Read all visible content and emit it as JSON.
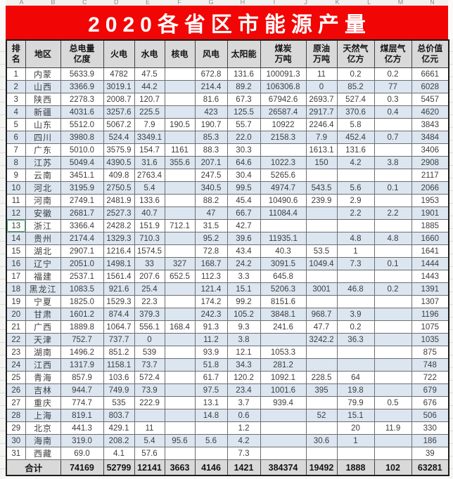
{
  "page": {
    "title": "2020各省区市能源产量",
    "column_letters": [
      "A",
      "B",
      "C",
      "D",
      "E",
      "F",
      "G",
      "H",
      "I",
      "J",
      "K",
      "L",
      "M",
      "N"
    ]
  },
  "colors": {
    "banner_red": "#f20505",
    "header_gray": "#d9d9d9",
    "alt_row_blue": "#dce6f1",
    "selection_green": "#4caf7d"
  },
  "selection": {
    "row": 13,
    "column": "排名"
  },
  "table": {
    "headers": [
      "排名",
      "地区",
      "总电量\n亿度",
      "火电",
      "水电",
      "核电",
      "风电",
      "太阳能",
      "煤炭\n万吨",
      "原油\n万吨",
      "天然气\n亿方",
      "煤层气\n亿方",
      "总价值\n亿元"
    ],
    "rows": [
      [
        "1",
        "内蒙",
        "5633.9",
        "4782",
        "47.5",
        "",
        "672.8",
        "131.6",
        "100091.3",
        "11",
        "0.2",
        "0.2",
        "6661"
      ],
      [
        "2",
        "山西",
        "3366.9",
        "3019.1",
        "44.2",
        "",
        "214.4",
        "89.2",
        "106306.8",
        "0",
        "85.2",
        "77",
        "6028"
      ],
      [
        "3",
        "陕西",
        "2278.3",
        "2008.7",
        "120.7",
        "",
        "81.6",
        "67.3",
        "67942.6",
        "2693.7",
        "527.4",
        "0.3",
        "5457"
      ],
      [
        "4",
        "新疆",
        "4031.6",
        "3257.6",
        "225.5",
        "",
        "423",
        "125.5",
        "26587.4",
        "2917.7",
        "370.6",
        "0.4",
        "4620"
      ],
      [
        "5",
        "山东",
        "5512.0",
        "5067.2",
        "7.9",
        "190.5",
        "190.7",
        "55.7",
        "10922",
        "2246.4",
        "5.8",
        "",
        "3843"
      ],
      [
        "6",
        "四川",
        "3980.8",
        "524.4",
        "3349.1",
        "",
        "85.3",
        "22.0",
        "2158.3",
        "7.9",
        "452.4",
        "0.7",
        "3484"
      ],
      [
        "7",
        "广东",
        "5010.0",
        "3575.9",
        "154.7",
        "1161",
        "88.3",
        "30.3",
        "",
        "1613.1",
        "131.6",
        "",
        "3406"
      ],
      [
        "8",
        "江苏",
        "5049.4",
        "4390.5",
        "31.6",
        "355.6",
        "207.1",
        "64.6",
        "1022.3",
        "150",
        "4.2",
        "3.8",
        "2908"
      ],
      [
        "9",
        "云南",
        "3451.1",
        "409.8",
        "2763.4",
        "",
        "247.5",
        "30.4",
        "5265.6",
        "",
        "",
        "",
        "2117"
      ],
      [
        "10",
        "河北",
        "3195.9",
        "2750.5",
        "5.4",
        "",
        "340.5",
        "99.5",
        "4974.7",
        "543.5",
        "5.6",
        "0.1",
        "2066"
      ],
      [
        "11",
        "河南",
        "2749.1",
        "2481.9",
        "133.6",
        "",
        "88.2",
        "45.4",
        "10490.6",
        "239.9",
        "2.9",
        "",
        "1953"
      ],
      [
        "12",
        "安徽",
        "2681.7",
        "2527.3",
        "40.7",
        "",
        "47",
        "66.7",
        "11084.4",
        "",
        "2.2",
        "2.2",
        "1901"
      ],
      [
        "13",
        "浙江",
        "3366.4",
        "2428.2",
        "151.9",
        "712.1",
        "31.5",
        "42.7",
        "",
        "",
        "",
        "",
        "1885"
      ],
      [
        "14",
        "贵州",
        "2174.4",
        "1329.3",
        "710.3",
        "",
        "95.2",
        "39.6",
        "11935.1",
        "",
        "4.8",
        "4.8",
        "1660"
      ],
      [
        "15",
        "湖北",
        "2907.1",
        "1216.4",
        "1574.5",
        "",
        "72.8",
        "43.4",
        "40.3",
        "53.5",
        "1",
        "",
        "1641"
      ],
      [
        "16",
        "辽宁",
        "2051.0",
        "1498.1",
        "33",
        "327",
        "168.7",
        "24.2",
        "3091.5",
        "1049.4",
        "7.3",
        "0.1",
        "1444"
      ],
      [
        "17",
        "福建",
        "2537.1",
        "1561.4",
        "207.6",
        "652.5",
        "112.3",
        "3.3",
        "645.8",
        "",
        "",
        "",
        "1443"
      ],
      [
        "18",
        "黑龙江",
        "1083.5",
        "921.6",
        "25.4",
        "",
        "121.4",
        "15.1",
        "5206.3",
        "3001",
        "46.8",
        "0.2",
        "1391"
      ],
      [
        "19",
        "宁夏",
        "1825.0",
        "1529.3",
        "22.3",
        "",
        "174.2",
        "99.2",
        "8151.6",
        "",
        "",
        "",
        "1307"
      ],
      [
        "20",
        "甘肃",
        "1601.2",
        "874.4",
        "379.3",
        "",
        "242.3",
        "105.2",
        "3848.1",
        "968.7",
        "3.9",
        "",
        "1196"
      ],
      [
        "21",
        "广西",
        "1889.8",
        "1064.7",
        "556.1",
        "168.4",
        "91.3",
        "9.3",
        "241.6",
        "47.7",
        "0.2",
        "",
        "1075"
      ],
      [
        "22",
        "天津",
        "752.7",
        "737.7",
        "0",
        "",
        "11.2",
        "3.8",
        "",
        "3242.2",
        "36.3",
        "",
        "1035"
      ],
      [
        "23",
        "湖南",
        "1496.2",
        "851.2",
        "539",
        "",
        "93.9",
        "12.1",
        "1053.3",
        "",
        "",
        "",
        "875"
      ],
      [
        "24",
        "江西",
        "1317.9",
        "1158.1",
        "73.7",
        "",
        "51.8",
        "34.3",
        "281.2",
        "",
        "",
        "",
        "748"
      ],
      [
        "25",
        "青海",
        "857.9",
        "103.6",
        "572.4",
        "",
        "61.7",
        "120.2",
        "1092.1",
        "228.5",
        "64",
        "",
        "722"
      ],
      [
        "26",
        "吉林",
        "944.7",
        "749.9",
        "73.9",
        "",
        "97.5",
        "23.4",
        "1001.6",
        "395",
        "19.8",
        "",
        "679"
      ],
      [
        "27",
        "重庆",
        "774.7",
        "535",
        "222.9",
        "",
        "13.1",
        "3.7",
        "939.4",
        "",
        "79.9",
        "0.5",
        "676"
      ],
      [
        "28",
        "上海",
        "819.1",
        "803.7",
        "",
        "",
        "14.8",
        "0.6",
        "",
        "52",
        "15.1",
        "",
        "506"
      ],
      [
        "29",
        "北京",
        "441.3",
        "429.1",
        "11",
        "",
        "",
        "1.2",
        "",
        "",
        "20",
        "11.9",
        "330"
      ],
      [
        "30",
        "海南",
        "319.0",
        "208.2",
        "5.4",
        "95.6",
        "5.6",
        "4.2",
        "",
        "30.6",
        "1",
        "",
        "186"
      ],
      [
        "31",
        "西藏",
        "69.0",
        "4.1",
        "57.6",
        "",
        "",
        "7.3",
        "",
        "",
        "",
        "",
        "39"
      ]
    ],
    "total_label": "合计",
    "total_values": [
      "74169",
      "52799",
      "12141",
      "3663",
      "4146",
      "1421",
      "384374",
      "19492",
      "1888",
      "102",
      "63281"
    ]
  }
}
